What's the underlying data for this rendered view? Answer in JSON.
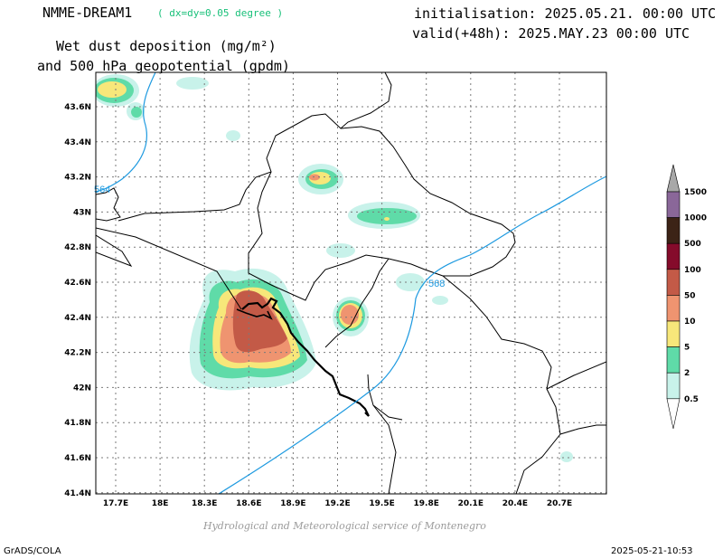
{
  "header": {
    "model": "NMME-DREAM1",
    "resolution": "( dx=dy=0.05 degree )",
    "title_line1": "Wet dust deposition (mg/m²)",
    "title_line2": "and 500 hPa geopotential (gpdm)",
    "init": "initialisation: 2025.05.21. 00:00 UTC",
    "valid": "valid(+48h): 2025.MAY.23 00:00 UTC"
  },
  "map": {
    "lon_ticks": [
      "17.7E",
      "18E",
      "18.3E",
      "18.6E",
      "18.9E",
      "19.2E",
      "19.5E",
      "19.8E",
      "20.1E",
      "20.4E",
      "20.7E"
    ],
    "lat_ticks": [
      "43.6N",
      "43.4N",
      "43.2N",
      "43N",
      "42.8N",
      "42.6N",
      "42.4N",
      "42.2N",
      "42N",
      "41.8N",
      "41.6N",
      "41.4N"
    ],
    "contour_labels": [
      "564",
      "568"
    ]
  },
  "legend": {
    "levels": [
      "0.5",
      "2",
      "5",
      "10",
      "50",
      "100",
      "500",
      "1000",
      "1500"
    ],
    "colors": [
      "#c8f2ea",
      "#5fdba8",
      "#f7e77a",
      "#ef9470",
      "#c35a47",
      "#850b2b",
      "#3c2316",
      "#8a6799",
      "#a8a8a8"
    ]
  },
  "footer": {
    "credit": "Hydrological and Meteorological service of Montenegro",
    "software": "GrADS/COLA",
    "timestamp": "2025-05-21-10:53"
  }
}
